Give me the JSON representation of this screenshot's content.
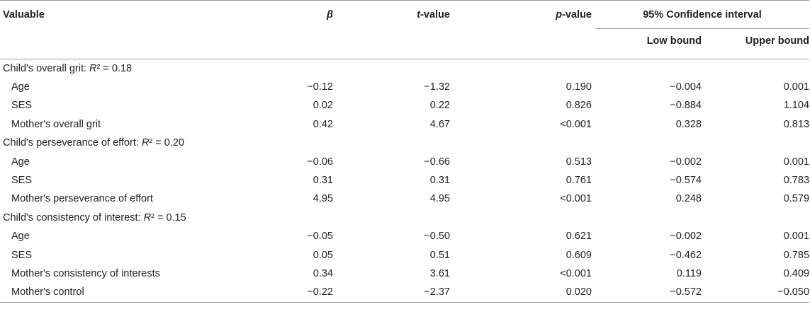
{
  "header": {
    "variable": "Valuable",
    "beta": "β",
    "t_italic": "t",
    "t_rest": "-value",
    "p_italic": "p",
    "p_rest": "-value",
    "ci": "95% Confidence interval",
    "low": "Low bound",
    "upper": "Upper bound"
  },
  "sections": [
    {
      "title_pre": "Child's overall grit: ",
      "title_r": "R",
      "title_post": "² = 0.18",
      "rows": [
        {
          "label": "Age",
          "beta": "−0.12",
          "t": "−1.32",
          "p": "0.190",
          "low": "−0.004",
          "upper": "0.001"
        },
        {
          "label": "SES",
          "beta": "0.02",
          "t": "0.22",
          "p": "0.826",
          "low": "−0.884",
          "upper": "1.104"
        },
        {
          "label": "Mother's overall grit",
          "beta": "0.42",
          "t": "4.67",
          "p": "<0.001",
          "low": "0.328",
          "upper": "0.813"
        }
      ]
    },
    {
      "title_pre": "Child's perseverance of effort: ",
      "title_r": "R",
      "title_post": "² = 0.20",
      "rows": [
        {
          "label": "Age",
          "beta": "−0.06",
          "t": "−0.66",
          "p": "0.513",
          "low": "−0.002",
          "upper": "0.001"
        },
        {
          "label": "SES",
          "beta": "0.31",
          "t": "0.31",
          "p": "0.761",
          "low": "−0.574",
          "upper": "0.783"
        },
        {
          "label": "Mother's perseverance of effort",
          "beta": "4.95",
          "t": "4.95",
          "p": "<0.001",
          "low": "0.248",
          "upper": "0.579"
        }
      ]
    },
    {
      "title_pre": "Child's consistency of interest: ",
      "title_r": "R",
      "title_post": "² = 0.15",
      "rows": [
        {
          "label": "Age",
          "beta": "−0.05",
          "t": "−0.50",
          "p": "0.621",
          "low": "−0.002",
          "upper": "0.001"
        },
        {
          "label": "SES",
          "beta": "0.05",
          "t": "0.51",
          "p": "0.609",
          "low": "−0.462",
          "upper": "0.785"
        },
        {
          "label": "Mother's consistency of interests",
          "beta": "0.34",
          "t": "3.61",
          "p": "<0.001",
          "low": "0.119",
          "upper": "0.409"
        },
        {
          "label": "Mother's control",
          "beta": "−0.22",
          "t": "−2.37",
          "p": "0.020",
          "low": "−0.572",
          "upper": "−0.050"
        }
      ]
    }
  ]
}
